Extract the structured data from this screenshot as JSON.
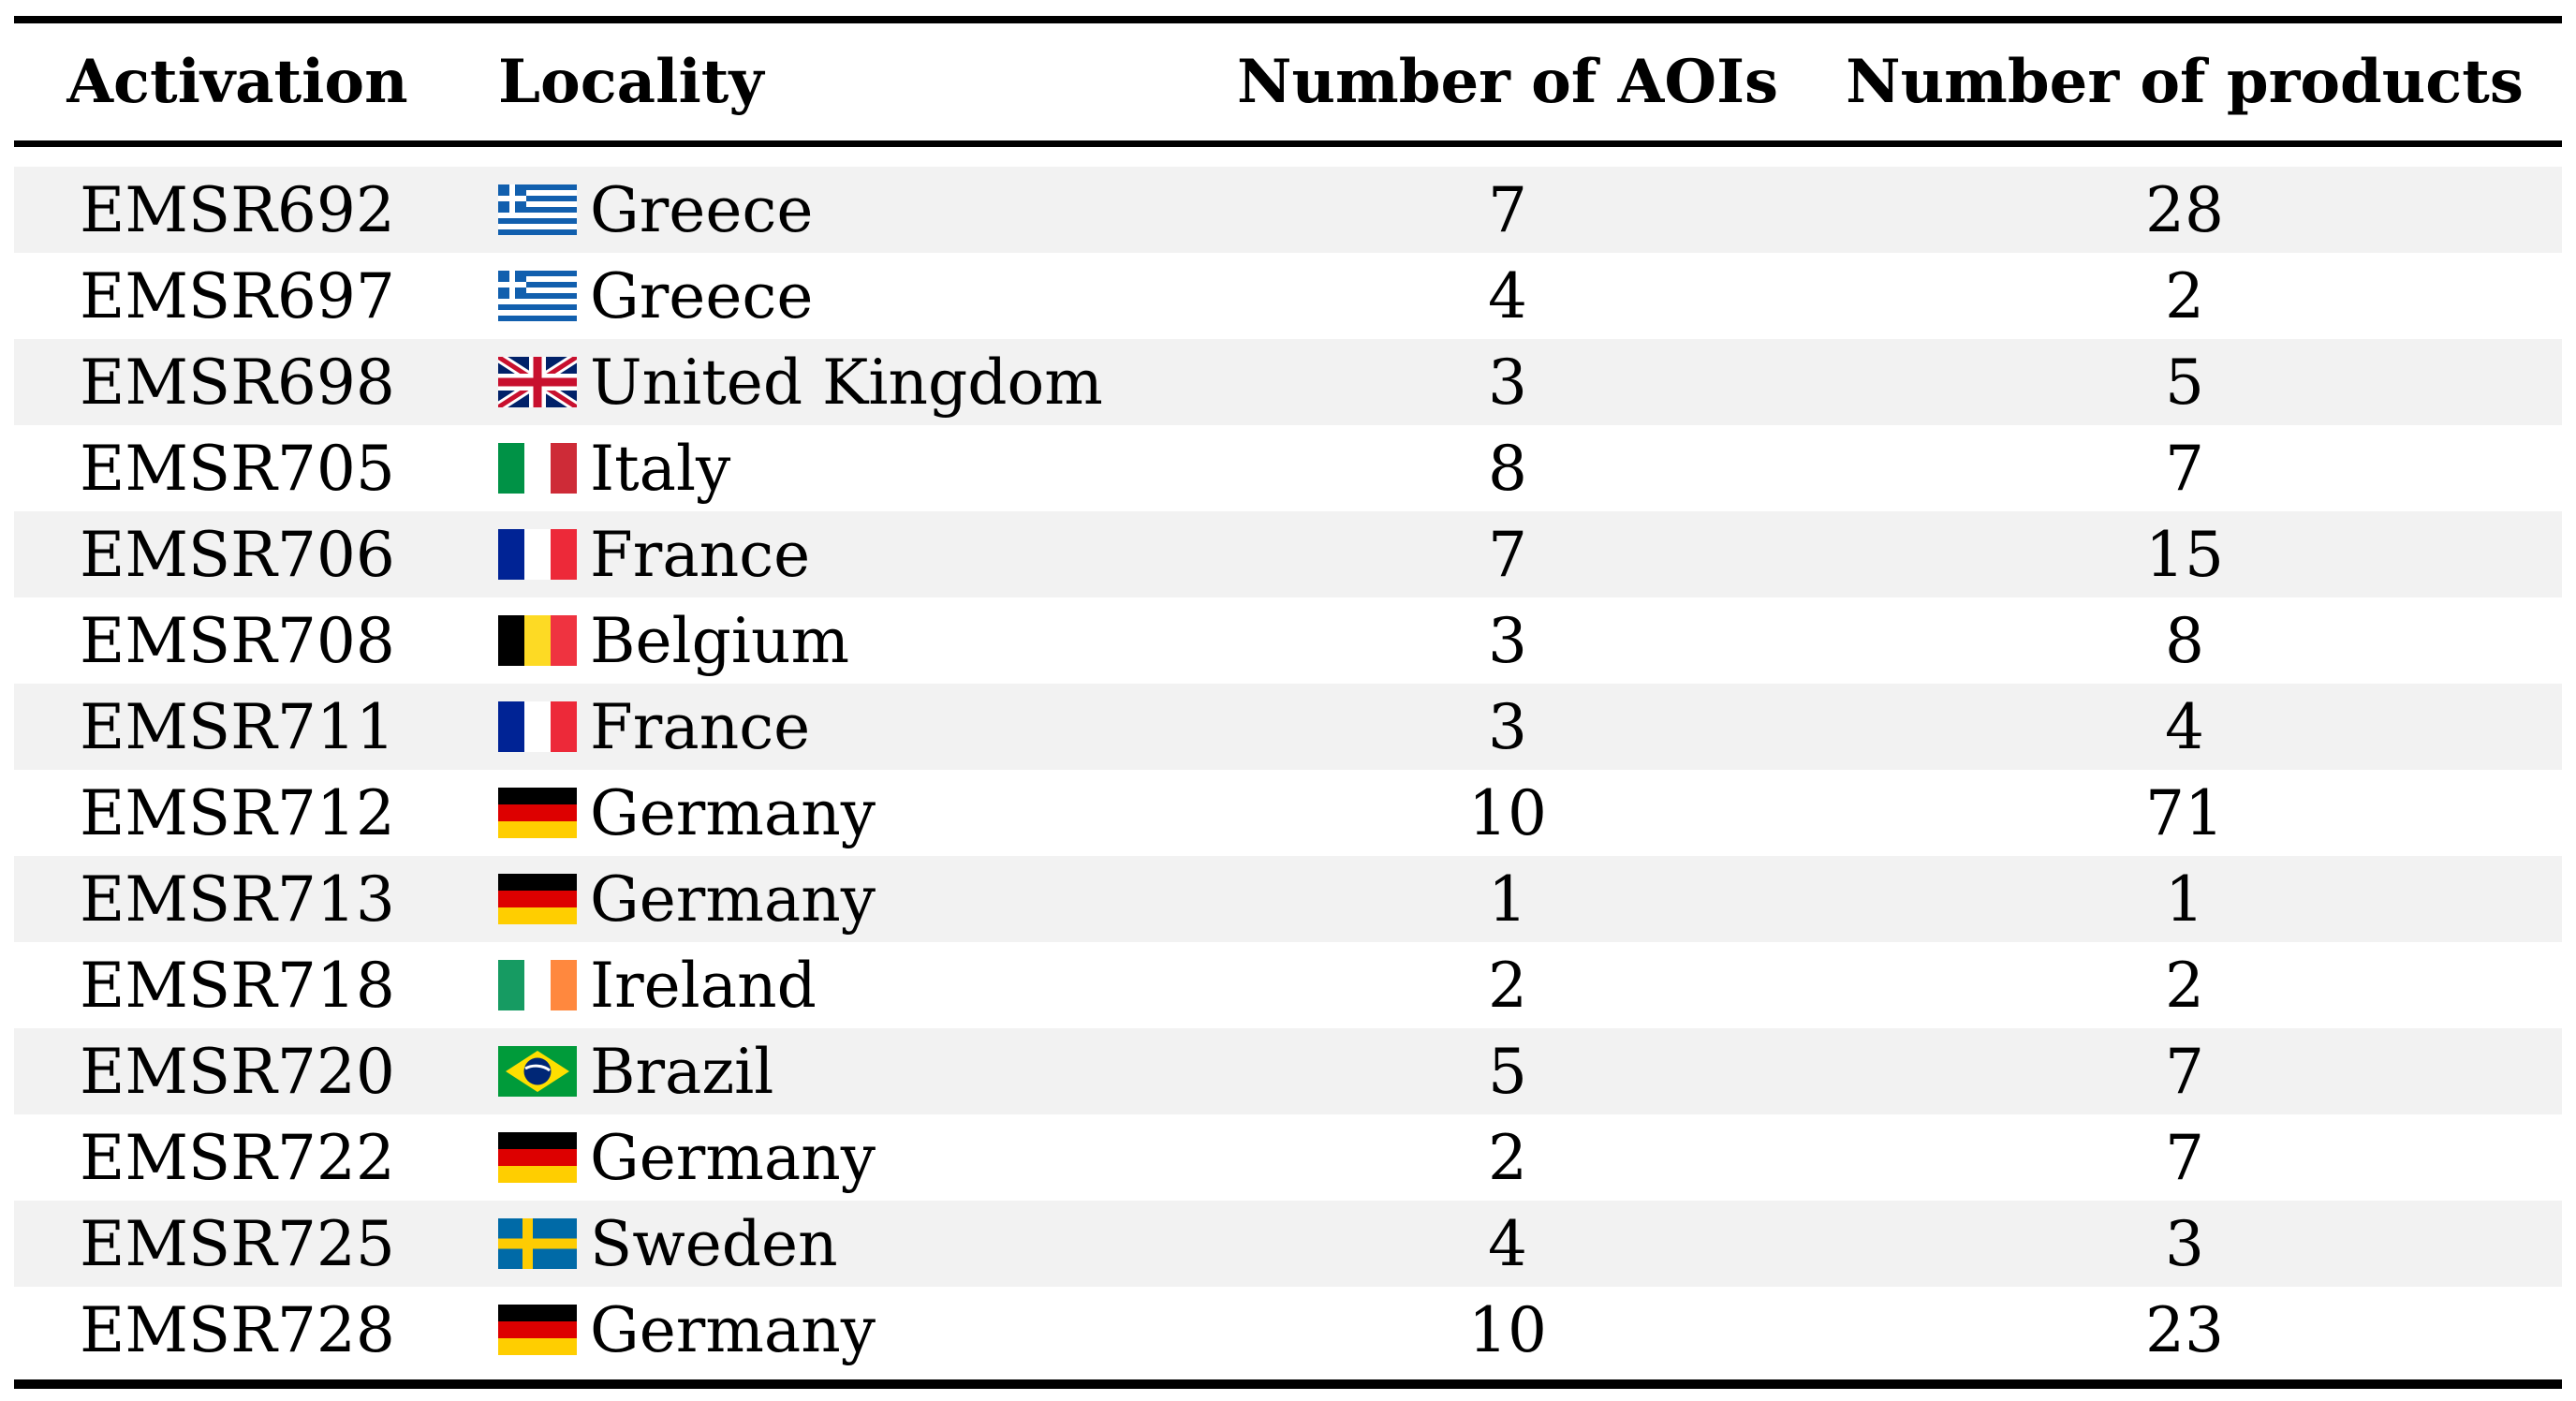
{
  "table": {
    "columns": [
      {
        "id": "activation",
        "label": "Activation"
      },
      {
        "id": "locality",
        "label": "Locality"
      },
      {
        "id": "aois",
        "label": "Number of AOIs"
      },
      {
        "id": "products",
        "label": "Number of products"
      }
    ],
    "rows": [
      {
        "activation": "EMSR692",
        "country": "Greece",
        "flag": "greece",
        "aois": "7",
        "products": "28"
      },
      {
        "activation": "EMSR697",
        "country": "Greece",
        "flag": "greece",
        "aois": "4",
        "products": "2"
      },
      {
        "activation": "EMSR698",
        "country": "United Kingdom",
        "flag": "united-kingdom",
        "aois": "3",
        "products": "5"
      },
      {
        "activation": "EMSR705",
        "country": "Italy",
        "flag": "italy",
        "aois": "8",
        "products": "7"
      },
      {
        "activation": "EMSR706",
        "country": "France",
        "flag": "france",
        "aois": "7",
        "products": "15"
      },
      {
        "activation": "EMSR708",
        "country": "Belgium",
        "flag": "belgium",
        "aois": "3",
        "products": "8"
      },
      {
        "activation": "EMSR711",
        "country": "France",
        "flag": "france",
        "aois": "3",
        "products": "4"
      },
      {
        "activation": "EMSR712",
        "country": "Germany",
        "flag": "germany",
        "aois": "10",
        "products": "71"
      },
      {
        "activation": "EMSR713",
        "country": "Germany",
        "flag": "germany",
        "aois": "1",
        "products": "1"
      },
      {
        "activation": "EMSR718",
        "country": "Ireland",
        "flag": "ireland",
        "aois": "2",
        "products": "2"
      },
      {
        "activation": "EMSR720",
        "country": "Brazil",
        "flag": "brazil",
        "aois": "5",
        "products": "7"
      },
      {
        "activation": "EMSR722",
        "country": "Germany",
        "flag": "germany",
        "aois": "2",
        "products": "7"
      },
      {
        "activation": "EMSR725",
        "country": "Sweden",
        "flag": "sweden",
        "aois": "4",
        "products": "3"
      },
      {
        "activation": "EMSR728",
        "country": "Germany",
        "flag": "germany",
        "aois": "10",
        "products": "23"
      }
    ]
  },
  "colors": {
    "background": "#ffffff",
    "text": "#000000",
    "rule": "#000000",
    "row_stripe": "#f2f2f2"
  },
  "flag_colors": {
    "greece_blue": "#115FAE",
    "uk_blue": "#012169",
    "uk_red": "#C8102E",
    "italy_green": "#009246",
    "italy_red": "#CE2B37",
    "france_blue": "#002395",
    "france_red": "#ED2939",
    "belgium_black": "#000000",
    "belgium_yellow": "#FDDA24",
    "belgium_red": "#EF3340",
    "germany_black": "#000000",
    "germany_red": "#DD0000",
    "germany_gold": "#FFCE00",
    "ireland_green": "#169B62",
    "ireland_orange": "#FF883E",
    "brazil_green": "#009B3A",
    "brazil_yellow": "#FEDF00",
    "brazil_blue": "#002776",
    "sweden_blue": "#006AA7",
    "sweden_yellow": "#FECC02"
  }
}
